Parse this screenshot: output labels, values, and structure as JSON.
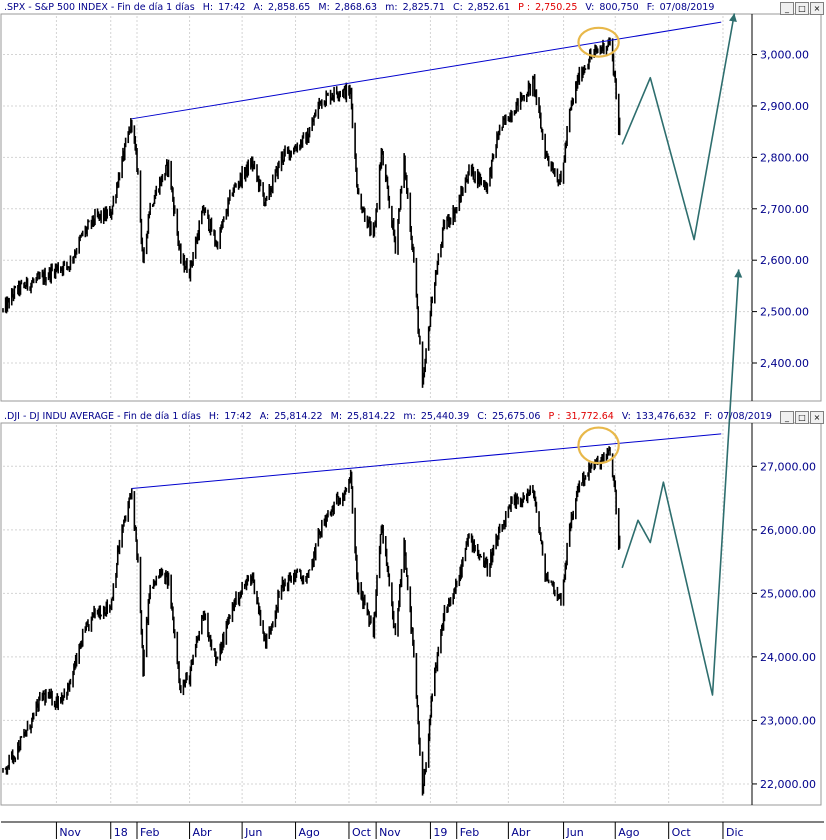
{
  "panels": [
    {
      "header": {
        "symbol": ".SPX - S&P 500 INDEX - Fin de día 1 días",
        "h_label": "H:",
        "h_value": "17:42",
        "a_label": "A:",
        "a_value": "2,858.65",
        "m_label": "M:",
        "m_value": "2,868.63",
        "min_label": "m:",
        "min_value": "2,825.71",
        "c_label": "C:",
        "c_value": "2,852.61",
        "p_label": "P :",
        "p_value": "2,750.25",
        "v_label": "V:",
        "v_value": "800,750",
        "f_label": "F:",
        "f_value": "07/08/2019"
      }
    },
    {
      "header": {
        "symbol": ".DJI - DJ INDU AVERAGE - Fin de día 1 días",
        "h_label": "H:",
        "h_value": "17:42",
        "a_label": "A:",
        "a_value": "25,814.22",
        "m_label": "M:",
        "m_value": "25,814.22",
        "min_label": "m:",
        "min_value": "25,440.39",
        "c_label": "C:",
        "c_value": "25,675.06",
        "p_label": "P :",
        "p_value": "31,772.64",
        "v_label": "V:",
        "v_value": "133,476,632",
        "f_label": "F:",
        "f_value": "07/08/2019"
      }
    }
  ],
  "window_buttons": {
    "minimize": "_",
    "restore": "□",
    "close": "×"
  },
  "colors": {
    "price": "#000000",
    "trendline": "#0000cd",
    "projection": "#2e6e6e",
    "highlight": "#e8b84a",
    "axis_text": "#00008b",
    "grid": "#d4d4d4",
    "header_red": "#e00000"
  },
  "chart_data": [
    {
      "type": "line",
      "title": ".SPX - S&P 500 INDEX",
      "ylim": [
        2330,
        3075
      ],
      "yticks": [
        "2,400.00",
        "2,500.00",
        "2,600.00",
        "2,700.00",
        "2,800.00",
        "2,900.00",
        "3,000.00"
      ],
      "ytick_values": [
        2400,
        2500,
        2600,
        2700,
        2800,
        2900,
        3000
      ],
      "x_tick_labels": [
        "Nov",
        "18",
        "Feb",
        "Abr",
        "Jun",
        "Ago",
        "Oct",
        "Nov",
        "19",
        "Feb",
        "Abr",
        "Jun",
        "Ago",
        "Oct",
        "Dic"
      ],
      "x_tick_dates": [
        "2017-11-01",
        "2018-01-02",
        "2018-02-01",
        "2018-04-02",
        "2018-06-01",
        "2018-08-01",
        "2018-10-01",
        "2018-11-01",
        "2019-01-02",
        "2019-02-01",
        "2019-04-01",
        "2019-06-03",
        "2019-08-01",
        "2019-10-01",
        "2019-12-02"
      ],
      "series": [
        {
          "style": "daily_bars",
          "points": [
            [
              "2017-09-01",
              2500
            ],
            [
              "2017-09-15",
              2540
            ],
            [
              "2017-10-01",
              2555
            ],
            [
              "2017-10-16",
              2565
            ],
            [
              "2017-11-01",
              2585
            ],
            [
              "2017-11-15",
              2590
            ],
            [
              "2017-12-01",
              2650
            ],
            [
              "2017-12-15",
              2680
            ],
            [
              "2018-01-02",
              2690
            ],
            [
              "2018-01-12",
              2770
            ],
            [
              "2018-01-26",
              2870
            ],
            [
              "2018-02-02",
              2770
            ],
            [
              "2018-02-08",
              2590
            ],
            [
              "2018-02-15",
              2700
            ],
            [
              "2018-02-27",
              2750
            ],
            [
              "2018-03-09",
              2785
            ],
            [
              "2018-03-23",
              2600
            ],
            [
              "2018-04-02",
              2580
            ],
            [
              "2018-04-18",
              2700
            ],
            [
              "2018-05-03",
              2630
            ],
            [
              "2018-05-21",
              2735
            ],
            [
              "2018-06-12",
              2790
            ],
            [
              "2018-06-28",
              2710
            ],
            [
              "2018-07-16",
              2800
            ],
            [
              "2018-08-01",
              2820
            ],
            [
              "2018-08-15",
              2840
            ],
            [
              "2018-08-29",
              2910
            ],
            [
              "2018-09-20",
              2930
            ],
            [
              "2018-10-03",
              2925
            ],
            [
              "2018-10-11",
              2730
            ],
            [
              "2018-10-29",
              2640
            ],
            [
              "2018-11-07",
              2810
            ],
            [
              "2018-11-23",
              2630
            ],
            [
              "2018-12-03",
              2790
            ],
            [
              "2018-12-14",
              2600
            ],
            [
              "2018-12-24",
              2350
            ],
            [
              "2019-01-04",
              2530
            ],
            [
              "2019-01-18",
              2670
            ],
            [
              "2019-02-01",
              2700
            ],
            [
              "2019-02-15",
              2775
            ],
            [
              "2019-03-08",
              2745
            ],
            [
              "2019-03-21",
              2850
            ],
            [
              "2019-04-05",
              2890
            ],
            [
              "2019-04-30",
              2945
            ],
            [
              "2019-05-13",
              2810
            ],
            [
              "2019-05-31",
              2750
            ],
            [
              "2019-06-10",
              2885
            ],
            [
              "2019-06-20",
              2955
            ],
            [
              "2019-07-03",
              2995
            ],
            [
              "2019-07-26",
              3025
            ],
            [
              "2019-08-01",
              2950
            ],
            [
              "2019-08-05",
              2845
            ],
            [
              "2019-08-07",
              2880
            ]
          ]
        },
        {
          "name": "trendline",
          "style": "line",
          "points": [
            [
              "2018-01-26",
              2875
            ],
            [
              "2019-11-30",
              3063
            ]
          ]
        },
        {
          "name": "projection",
          "style": "arrow",
          "points": [
            [
              "2019-08-09",
              2825
            ],
            [
              "2019-09-10",
              2955
            ],
            [
              "2019-10-30",
              2640
            ],
            [
              "2019-12-15",
              3080
            ]
          ]
        }
      ],
      "highlight": {
        "center": [
          "2019-07-13",
          3024
        ],
        "rx_days": 23,
        "ry_value": 28
      }
    },
    {
      "type": "line",
      "title": ".DJI - DJ INDU AVERAGE",
      "ylim": [
        21700,
        27650
      ],
      "yticks": [
        "22,000.00",
        "23,000.00",
        "24,000.00",
        "25,000.00",
        "26,000.00",
        "27,000.00"
      ],
      "ytick_values": [
        22000,
        23000,
        24000,
        25000,
        26000,
        27000
      ],
      "x_tick_labels": [
        "Nov",
        "18",
        "Feb",
        "Abr",
        "Jun",
        "Ago",
        "Oct",
        "Nov",
        "19",
        "Feb",
        "Abr",
        "Jun",
        "Ago",
        "Oct",
        "Dic"
      ],
      "x_tick_dates": [
        "2017-11-01",
        "2018-01-02",
        "2018-02-01",
        "2018-04-02",
        "2018-06-01",
        "2018-08-01",
        "2018-10-01",
        "2018-11-01",
        "2019-01-02",
        "2019-02-01",
        "2019-04-01",
        "2019-06-03",
        "2019-08-01",
        "2019-10-01",
        "2019-12-02"
      ],
      "series": [
        {
          "style": "daily_bars",
          "points": [
            [
              "2017-09-01",
              22200
            ],
            [
              "2017-09-15",
              22500
            ],
            [
              "2017-10-01",
              22900
            ],
            [
              "2017-10-16",
              23400
            ],
            [
              "2017-11-01",
              23300
            ],
            [
              "2017-11-15",
              23500
            ],
            [
              "2017-12-01",
              24300
            ],
            [
              "2017-12-15",
              24700
            ],
            [
              "2018-01-02",
              24800
            ],
            [
              "2018-01-12",
              25800
            ],
            [
              "2018-01-26",
              26600
            ],
            [
              "2018-02-02",
              25500
            ],
            [
              "2018-02-08",
              23800
            ],
            [
              "2018-02-15",
              25000
            ],
            [
              "2018-02-27",
              25300
            ],
            [
              "2018-03-09",
              25200
            ],
            [
              "2018-03-23",
              23500
            ],
            [
              "2018-04-02",
              23700
            ],
            [
              "2018-04-18",
              24700
            ],
            [
              "2018-05-03",
              23900
            ],
            [
              "2018-05-21",
              24800
            ],
            [
              "2018-06-12",
              25300
            ],
            [
              "2018-06-28",
              24200
            ],
            [
              "2018-07-16",
              25100
            ],
            [
              "2018-08-01",
              25300
            ],
            [
              "2018-08-15",
              25200
            ],
            [
              "2018-08-29",
              26000
            ],
            [
              "2018-09-20",
              26500
            ],
            [
              "2018-10-03",
              26800
            ],
            [
              "2018-10-11",
              25100
            ],
            [
              "2018-10-29",
              24400
            ],
            [
              "2018-11-07",
              26100
            ],
            [
              "2018-11-23",
              24300
            ],
            [
              "2018-12-03",
              25800
            ],
            [
              "2018-12-14",
              24000
            ],
            [
              "2018-12-24",
              21800
            ],
            [
              "2019-01-04",
              23400
            ],
            [
              "2019-01-18",
              24700
            ],
            [
              "2019-02-01",
              25100
            ],
            [
              "2019-02-15",
              25900
            ],
            [
              "2019-03-08",
              25400
            ],
            [
              "2019-03-21",
              25900
            ],
            [
              "2019-04-05",
              26400
            ],
            [
              "2019-04-30",
              26600
            ],
            [
              "2019-05-13",
              25300
            ],
            [
              "2019-05-31",
              24900
            ],
            [
              "2019-06-10",
              26000
            ],
            [
              "2019-06-20",
              26700
            ],
            [
              "2019-07-03",
              26950
            ],
            [
              "2019-07-26",
              27200
            ],
            [
              "2019-08-01",
              26600
            ],
            [
              "2019-08-05",
              25700
            ],
            [
              "2019-08-07",
              25950
            ]
          ]
        },
        {
          "name": "trendline",
          "style": "line",
          "points": [
            [
              "2018-01-26",
              26650
            ],
            [
              "2019-11-30",
              27510
            ]
          ]
        },
        {
          "name": "projection",
          "style": "arrow",
          "points": [
            [
              "2019-08-09",
              25400
            ],
            [
              "2019-08-27",
              26150
            ],
            [
              "2019-09-10",
              25800
            ],
            [
              "2019-09-25",
              26750
            ],
            [
              "2019-11-20",
              23400
            ],
            [
              "2019-12-20",
              30100
            ]
          ]
        }
      ],
      "highlight": {
        "center": [
          "2019-07-13",
          27330
        ],
        "rx_days": 23,
        "ry_value": 280
      }
    }
  ]
}
